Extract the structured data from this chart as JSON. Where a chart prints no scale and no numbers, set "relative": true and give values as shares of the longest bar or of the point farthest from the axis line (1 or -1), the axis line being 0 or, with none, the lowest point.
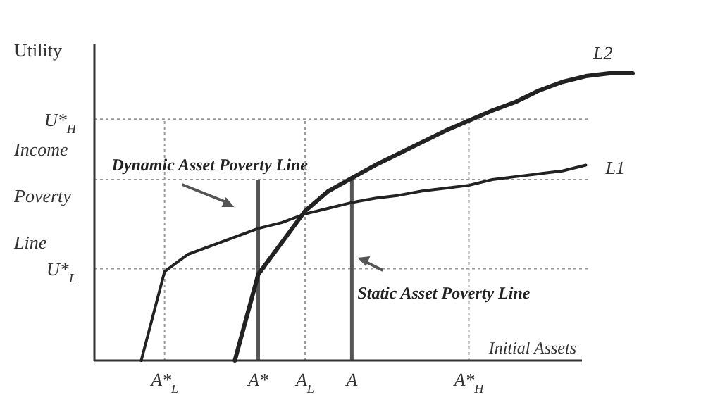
{
  "chart_data": {
    "type": "line",
    "relative": true,
    "ylabel": "Utility",
    "xlabel": "Initial Assets",
    "categories": [
      null,
      null,
      null,
      "A*$_{L}$",
      null,
      null,
      null,
      "A*",
      null,
      "A$_{L}$",
      null,
      "A",
      null,
      null,
      null,
      null,
      "A*$_{H}$",
      null,
      null,
      null,
      null,
      null,
      null,
      null
    ],
    "series": [
      {
        "name": "L1",
        "color": "#222222",
        "values": [
          null,
          null,
          0,
          0.31,
          0.37,
          0.4,
          0.43,
          0.46,
          0.48,
          0.51,
          0.53,
          0.55,
          0.565,
          0.575,
          0.59,
          0.6,
          0.61,
          0.63,
          0.64,
          0.65,
          0.66,
          0.68,
          null,
          null
        ]
      },
      {
        "name": "L2",
        "color": "#222222",
        "values": [
          null,
          null,
          null,
          null,
          null,
          null,
          0,
          0.3,
          0.41,
          0.52,
          0.59,
          0.635,
          0.68,
          0.72,
          0.76,
          0.8,
          0.835,
          0.87,
          0.9,
          0.94,
          0.97,
          0.99,
          1,
          1
        ]
      }
    ],
    "ref_lines": [
      {
        "axis": "y",
        "value": 0.84,
        "label": "U*$_{H}$",
        "color": "#999999",
        "line_style": "dotted"
      },
      {
        "axis": "y",
        "value": 0.63,
        "label": "Income Poverty Line",
        "color": "#999999",
        "line_style": "dotted"
      },
      {
        "axis": "y",
        "value": 0.32,
        "label": "U*$_{L}$",
        "color": "#999999",
        "line_style": "dotted"
      },
      {
        "axis": "x",
        "value": "A*$_{L}$",
        "color": "#999999",
        "line_style": "dotted"
      },
      {
        "axis": "x",
        "value": "A*",
        "color": "#555555",
        "line_style": "solid",
        "label": "Dynamic Asset Poverty Line"
      },
      {
        "axis": "x",
        "value": "A$_{L}$",
        "color": "#999999",
        "line_style": "dotted"
      },
      {
        "axis": "x",
        "value": "A",
        "color": "#555555",
        "line_style": "solid",
        "label": "Static Asset Poverty Line"
      },
      {
        "axis": "x",
        "value": "A*$_{H}$",
        "color": "#999999",
        "line_style": "dotted"
      }
    ],
    "legend": false,
    "marker": "none",
    "line_style": "solid"
  }
}
